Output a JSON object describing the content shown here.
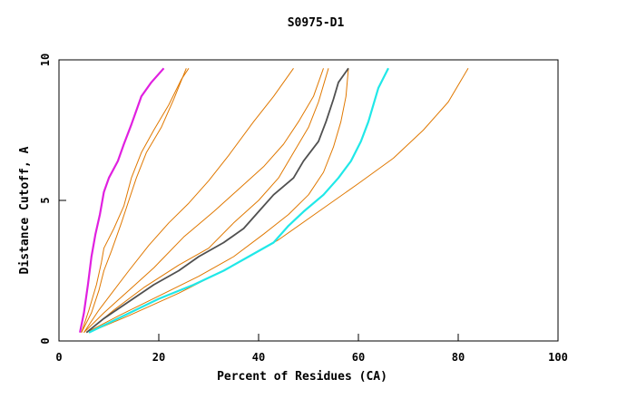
{
  "chart_data": {
    "type": "line",
    "title": "S0975-D1",
    "xlabel": "Percent of Residues (CA)",
    "ylabel": "Distance Cutoff, A",
    "xlim": [
      0,
      100
    ],
    "ylim": [
      0,
      10
    ],
    "x_ticks": [
      "0",
      "20",
      "40",
      "60",
      "80",
      "100"
    ],
    "y_ticks": [
      "0",
      "5",
      "10"
    ],
    "x_tick_values": [
      0,
      20,
      40,
      60,
      80,
      100
    ],
    "y_tick_values": [
      0,
      5,
      10
    ],
    "grid": false,
    "colors": {
      "magenta": "#e020e0",
      "orange": "#e07800",
      "dark": "#505050",
      "cyan": "#20e8e8",
      "axis": "#000000"
    },
    "series": [
      {
        "color_key": "magenta",
        "width": 2.2,
        "points": [
          [
            4.2,
            0.3
          ],
          [
            5.0,
            1.0
          ],
          [
            5.8,
            2.0
          ],
          [
            6.5,
            3.0
          ],
          [
            7.3,
            3.8
          ],
          [
            8.2,
            4.5
          ],
          [
            9.0,
            5.3
          ],
          [
            10.0,
            5.8
          ],
          [
            11.8,
            6.4
          ],
          [
            13.0,
            7.0
          ],
          [
            14.5,
            7.7
          ],
          [
            16.5,
            8.7
          ],
          [
            18.5,
            9.2
          ],
          [
            21.0,
            9.7
          ]
        ]
      },
      {
        "color_key": "orange",
        "width": 1,
        "points": [
          [
            4.5,
            0.3
          ],
          [
            6.0,
            1.1
          ],
          [
            7.5,
            2.0
          ],
          [
            8.5,
            2.8
          ],
          [
            9.0,
            3.3
          ],
          [
            11.0,
            4.0
          ],
          [
            13.0,
            4.8
          ],
          [
            14.5,
            5.8
          ],
          [
            16.5,
            6.7
          ],
          [
            19.0,
            7.5
          ],
          [
            22.0,
            8.4
          ],
          [
            24.5,
            9.3
          ],
          [
            26.0,
            9.7
          ]
        ]
      },
      {
        "color_key": "orange",
        "width": 1,
        "points": [
          [
            4.5,
            0.3
          ],
          [
            6.5,
            1.0
          ],
          [
            8.0,
            1.8
          ],
          [
            9.0,
            2.5
          ],
          [
            10.5,
            3.2
          ],
          [
            12.5,
            4.2
          ],
          [
            14.0,
            5.0
          ],
          [
            15.5,
            5.8
          ],
          [
            17.5,
            6.7
          ],
          [
            20.5,
            7.6
          ],
          [
            23.0,
            8.6
          ],
          [
            25.5,
            9.7
          ]
        ]
      },
      {
        "color_key": "orange",
        "width": 1,
        "points": [
          [
            5.0,
            0.3
          ],
          [
            8.0,
            1.1
          ],
          [
            11.0,
            1.8
          ],
          [
            14.0,
            2.5
          ],
          [
            18.0,
            3.4
          ],
          [
            22.0,
            4.2
          ],
          [
            26.0,
            4.9
          ],
          [
            30.0,
            5.7
          ],
          [
            34.0,
            6.6
          ],
          [
            39.0,
            7.8
          ],
          [
            43.0,
            8.7
          ],
          [
            47.0,
            9.7
          ]
        ]
      },
      {
        "color_key": "orange",
        "width": 1,
        "points": [
          [
            5.0,
            0.3
          ],
          [
            9.0,
            1.0
          ],
          [
            14.0,
            1.8
          ],
          [
            19.0,
            2.6
          ],
          [
            25.0,
            3.7
          ],
          [
            31.0,
            4.6
          ],
          [
            36.0,
            5.4
          ],
          [
            41.0,
            6.2
          ],
          [
            45.0,
            7.0
          ],
          [
            48.0,
            7.8
          ],
          [
            51.0,
            8.7
          ],
          [
            53.0,
            9.7
          ]
        ]
      },
      {
        "color_key": "orange",
        "width": 1,
        "points": [
          [
            5.5,
            0.3
          ],
          [
            11.0,
            1.1
          ],
          [
            17.0,
            1.9
          ],
          [
            24.0,
            2.7
          ],
          [
            30.0,
            3.3
          ],
          [
            35.0,
            4.2
          ],
          [
            40.0,
            5.0
          ],
          [
            44.0,
            5.8
          ],
          [
            47.0,
            6.7
          ],
          [
            50.0,
            7.6
          ],
          [
            52.0,
            8.5
          ],
          [
            54.0,
            9.7
          ]
        ]
      },
      {
        "color_key": "orange",
        "width": 1,
        "points": [
          [
            5.5,
            0.3
          ],
          [
            12.0,
            0.9
          ],
          [
            20.0,
            1.6
          ],
          [
            28.0,
            2.3
          ],
          [
            35.0,
            3.0
          ],
          [
            41.0,
            3.8
          ],
          [
            46.0,
            4.5
          ],
          [
            50.0,
            5.2
          ],
          [
            53.0,
            6.0
          ],
          [
            55.0,
            6.9
          ],
          [
            56.5,
            7.8
          ],
          [
            57.5,
            8.7
          ],
          [
            58.0,
            9.7
          ]
        ]
      },
      {
        "color_key": "orange",
        "width": 1,
        "points": [
          [
            6.0,
            0.3
          ],
          [
            14.0,
            0.9
          ],
          [
            24.0,
            1.7
          ],
          [
            34.0,
            2.6
          ],
          [
            44.0,
            3.6
          ],
          [
            52.0,
            4.6
          ],
          [
            60.0,
            5.6
          ],
          [
            67.0,
            6.5
          ],
          [
            73.0,
            7.5
          ],
          [
            78.0,
            8.5
          ],
          [
            82.0,
            9.7
          ]
        ]
      },
      {
        "color_key": "dark",
        "width": 1.8,
        "points": [
          [
            5.5,
            0.3
          ],
          [
            9.0,
            0.8
          ],
          [
            14.0,
            1.4
          ],
          [
            19.0,
            2.0
          ],
          [
            24.0,
            2.5
          ],
          [
            28.0,
            3.0
          ],
          [
            33.0,
            3.5
          ],
          [
            37.0,
            4.0
          ],
          [
            40.0,
            4.6
          ],
          [
            43.0,
            5.2
          ],
          [
            47.0,
            5.8
          ],
          [
            49.0,
            6.4
          ],
          [
            52.0,
            7.1
          ],
          [
            53.5,
            7.8
          ],
          [
            55.0,
            8.6
          ],
          [
            56.0,
            9.2
          ],
          [
            58.0,
            9.7
          ]
        ]
      },
      {
        "color_key": "cyan",
        "width": 2.2,
        "points": [
          [
            6.0,
            0.3
          ],
          [
            13.0,
            0.9
          ],
          [
            20.0,
            1.5
          ],
          [
            27.0,
            2.0
          ],
          [
            33.0,
            2.5
          ],
          [
            38.0,
            3.0
          ],
          [
            43.0,
            3.5
          ],
          [
            46.0,
            4.1
          ],
          [
            49.0,
            4.6
          ],
          [
            53.0,
            5.2
          ],
          [
            56.0,
            5.8
          ],
          [
            58.5,
            6.4
          ],
          [
            60.5,
            7.1
          ],
          [
            62.0,
            7.8
          ],
          [
            63.0,
            8.4
          ],
          [
            64.0,
            9.0
          ],
          [
            66.0,
            9.7
          ]
        ]
      }
    ]
  }
}
